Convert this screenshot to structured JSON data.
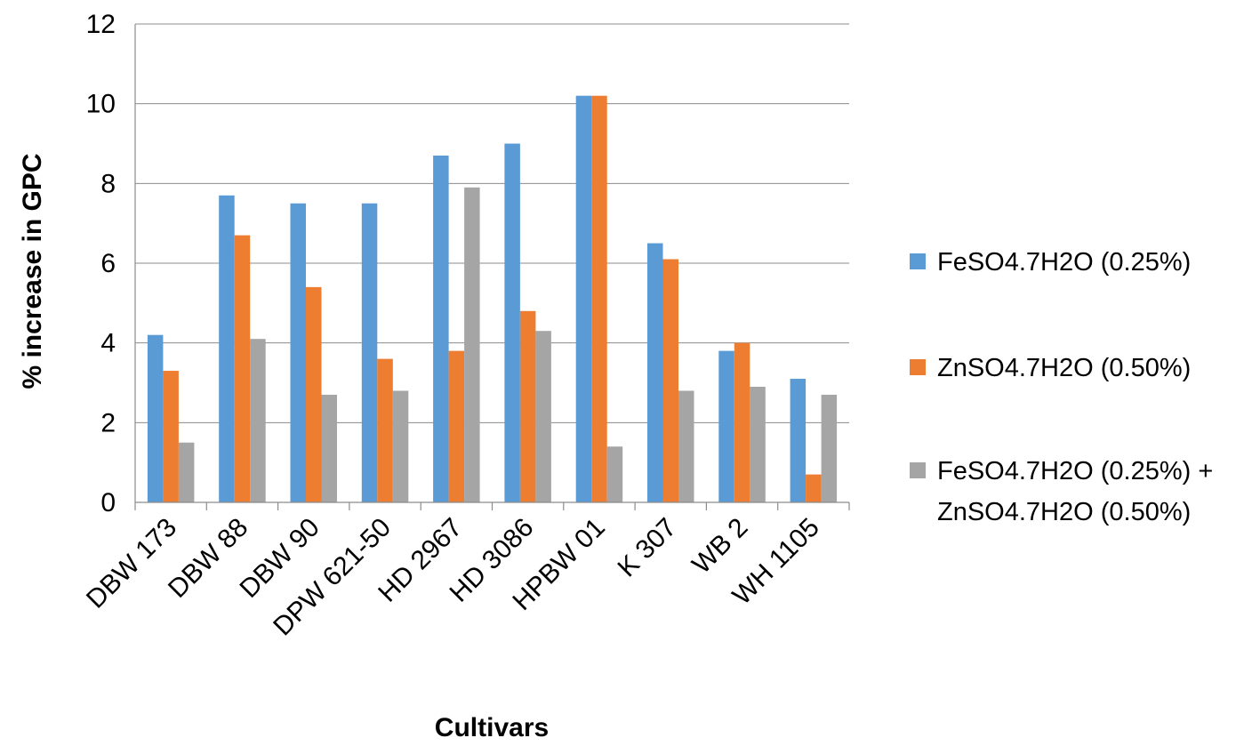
{
  "chart_data": {
    "type": "bar",
    "title": "",
    "xlabel": "Cultivars",
    "ylabel": "% increase in GPC",
    "ylim": [
      0,
      12
    ],
    "yticks": [
      0,
      2,
      4,
      6,
      8,
      10,
      12
    ],
    "grid": true,
    "legend_position": "right",
    "categories": [
      "DBW 173",
      "DBW 88",
      "DBW 90",
      "DPW 621-50",
      "HD 2967",
      "HD 3086",
      "HPBW 01",
      "K 307",
      "WB 2",
      "WH 1105"
    ],
    "series": [
      {
        "name": "FeSO4.7H2O (0.25%)",
        "legend_lines": [
          "FeSO4.7H2O (0.25%)"
        ],
        "color": "#5b9bd5",
        "values": [
          4.2,
          7.7,
          7.5,
          7.5,
          8.7,
          9.0,
          10.2,
          6.5,
          3.8,
          3.1
        ]
      },
      {
        "name": "ZnSO4.7H2O (0.50%)",
        "legend_lines": [
          "ZnSO4.7H2O (0.50%)"
        ],
        "color": "#ed7d31",
        "values": [
          3.3,
          6.7,
          5.4,
          3.6,
          3.8,
          4.8,
          10.2,
          6.1,
          4.0,
          0.7
        ]
      },
      {
        "name": "FeSO4.7H2O (0.25%) + ZnSO4.7H2O (0.50%)",
        "legend_lines": [
          "FeSO4.7H2O (0.25%) +",
          "ZnSO4.7H2O (0.50%)"
        ],
        "color": "#a5a5a5",
        "values": [
          1.5,
          4.1,
          2.7,
          2.8,
          7.9,
          4.3,
          1.4,
          2.8,
          2.9,
          2.7
        ]
      }
    ]
  }
}
